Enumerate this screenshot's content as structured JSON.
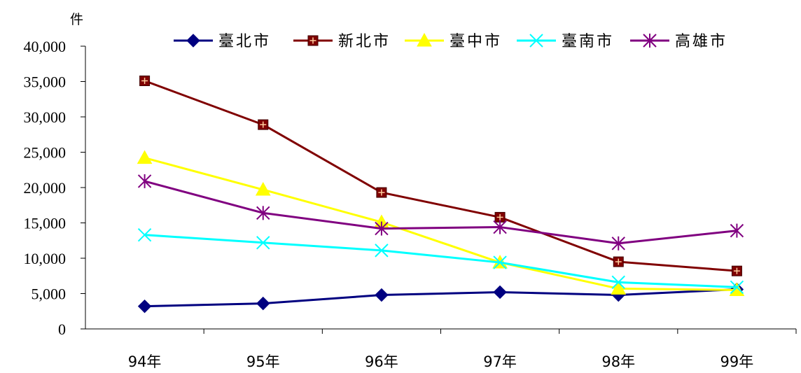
{
  "chart_data": {
    "type": "line",
    "unit_label": "件",
    "categories": [
      "94年",
      "95年",
      "96年",
      "97年",
      "98年",
      "99年"
    ],
    "ylim": [
      0,
      40000
    ],
    "yticks": [
      0,
      5000,
      10000,
      15000,
      20000,
      25000,
      30000,
      35000,
      40000
    ],
    "ytick_labels": [
      "0",
      "5,000",
      "10,000",
      "15,000",
      "20,000",
      "25,000",
      "30,000",
      "35,000",
      "40,000"
    ],
    "grid": false,
    "legend_position": "top",
    "series": [
      {
        "name": "臺北市",
        "color": "#000080",
        "marker": "diamond",
        "values": [
          3200,
          3600,
          4800,
          5200,
          4800,
          5600
        ]
      },
      {
        "name": "新北市",
        "color": "#800000",
        "marker": "square-plus",
        "values": [
          35100,
          28900,
          19300,
          15800,
          9500,
          8200
        ]
      },
      {
        "name": "臺中市",
        "color": "#FFFF00",
        "marker": "triangle",
        "values": [
          24200,
          19700,
          15100,
          9400,
          5700,
          5500
        ]
      },
      {
        "name": "臺南市",
        "color": "#00FFFF",
        "marker": "x",
        "values": [
          13300,
          12200,
          11100,
          9400,
          6600,
          5900
        ]
      },
      {
        "name": "高雄市",
        "color": "#800080",
        "marker": "star",
        "values": [
          20900,
          16400,
          14200,
          14400,
          12100,
          13900
        ]
      }
    ]
  }
}
